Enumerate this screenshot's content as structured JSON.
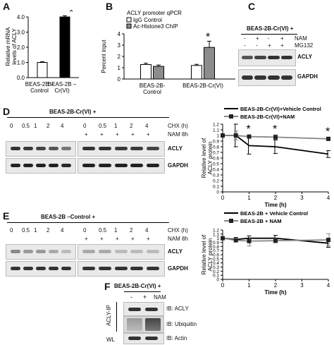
{
  "panels": {
    "A": "A",
    "B": "B",
    "C": "C",
    "D": "D",
    "E": "E",
    "F": "F"
  },
  "panelA": {
    "ylabel": "Relative mRNA\nlevels of ACLY",
    "chart_data": {
      "type": "bar",
      "categories": [
        "BEAS-2B –\nControl",
        "BEAS-2B –\nCr(VI)"
      ],
      "values": [
        1.0,
        4.0
      ],
      "error": [
        0.05,
        0.08
      ],
      "ylim": [
        0,
        4
      ],
      "yticks": [
        0,
        1,
        2,
        3,
        4
      ],
      "annotation": "*",
      "colors": [
        "#ffffff",
        "#000000"
      ]
    }
  },
  "panelB": {
    "title": "ACLY promoter qPCR",
    "ylabel": "Percent input",
    "chart_data": {
      "type": "bar",
      "categories": [
        "BEAS-2B-\nControl",
        "BEAS-2B-Cr(VI)"
      ],
      "series": [
        {
          "name": "IgG Control",
          "values": [
            1.28,
            1.2
          ],
          "error": [
            0.12,
            0.1
          ],
          "color": "#ffffff"
        },
        {
          "name": "Ac-Histone3 ChIP",
          "values": [
            1.12,
            2.8
          ],
          "error": [
            0.12,
            0.55
          ],
          "color": "#8c8c8c"
        }
      ],
      "ylim": [
        0,
        4
      ],
      "yticks": [
        0,
        1,
        2,
        3,
        4
      ],
      "annotation": "*"
    }
  },
  "panelC": {
    "header": "BEAS-2B-Cr(VI) +",
    "rows": [
      {
        "label": "NAM",
        "signs": [
          "-",
          "+",
          "-",
          "+"
        ]
      },
      {
        "label": "MG132",
        "signs": [
          "-",
          "-",
          "+",
          "+"
        ]
      }
    ],
    "blots": [
      "ACLY",
      "GAPDH"
    ]
  },
  "panelD": {
    "header": "BEAS-2B-Cr(VI) +",
    "chx_label": "CHX (h)",
    "nam_label": "NAM 8h",
    "times": [
      "0",
      "0.5",
      "1",
      "2",
      "4"
    ],
    "nam_signs": [
      "+",
      "+",
      "+",
      "+",
      "+"
    ],
    "blots": [
      "ACLY",
      "GAPDH"
    ],
    "ylabel": "Relative level of\nACLY protein",
    "xlabel": "Time (h)",
    "chart_data": {
      "type": "line",
      "x": [
        0,
        0.5,
        1,
        2,
        4
      ],
      "series": [
        {
          "name": "BEAS-2B-Cr(VI)+Vehicle Control",
          "values": [
            1.0,
            1.0,
            0.82,
            0.8,
            0.67
          ],
          "error": [
            0,
            0.2,
            0.15,
            0.12,
            0.06
          ],
          "color": "#000000",
          "marker": "none"
        },
        {
          "name": "BEAS-2B-Cr(VI)+NAM",
          "values": [
            1.0,
            1.0,
            0.98,
            0.97,
            0.94
          ],
          "error": [
            0,
            0.08,
            0.03,
            0.04,
            0.03
          ],
          "color": "#888888",
          "marker": "square"
        }
      ],
      "ylim": [
        0,
        1.2
      ],
      "yticks": [
        0,
        0.1,
        0.2,
        0.3,
        0.4,
        0.5,
        0.6,
        0.7,
        0.8,
        0.9,
        1,
        1.1,
        1.2
      ],
      "xlim": [
        0,
        4
      ],
      "xticks": [
        0,
        1,
        2,
        3,
        4
      ],
      "stars_at": [
        1,
        2,
        4
      ],
      "annotation": "*"
    }
  },
  "panelE": {
    "header": "BEAS-2B –Control +",
    "chx_label": "CHX (h)",
    "nam_label": "NAM 8h",
    "times": [
      "0",
      "0.5",
      "1",
      "2",
      "4"
    ],
    "nam_signs": [
      "+",
      "+",
      "+",
      "+",
      "+"
    ],
    "blots": [
      "ACLY",
      "GAPDH"
    ],
    "ylabel": "Relative level of\nACLY protein",
    "xlabel": "Time (h)",
    "chart_data": {
      "type": "line",
      "x": [
        0,
        0.5,
        1,
        2,
        4
      ],
      "series": [
        {
          "name": "BEAS-2B + Vehicle Control",
          "values": [
            1.0,
            0.97,
            1.0,
            1.0,
            0.88
          ],
          "error": [
            0,
            0.05,
            0.06,
            0.07,
            0.1
          ],
          "color": "#000000",
          "marker": "none"
        },
        {
          "name": "BEAS-2B + NAM",
          "values": [
            1.0,
            0.95,
            0.93,
            0.94,
            0.96
          ],
          "error": [
            0,
            0.04,
            0.12,
            0.05,
            0.15
          ],
          "color": "#888888",
          "marker": "square"
        }
      ],
      "ylim": [
        0,
        1.2
      ],
      "yticks": [
        0,
        0.1,
        0.2,
        0.3,
        0.4,
        0.5,
        0.6,
        0.7,
        0.8,
        0.9,
        1,
        1.1,
        1.2
      ],
      "xlim": [
        0,
        4
      ],
      "xticks": [
        0,
        1,
        2,
        3,
        4
      ]
    }
  },
  "panelF": {
    "header": "BEAS-2B-Cr(VI) +",
    "minus": "-",
    "plus": "+",
    "nam": "NAM",
    "ip": "ACLY-IP",
    "wl": "WL",
    "blots": [
      "IB: ACLY",
      "IB: Ubiquitin",
      "IB: Actin"
    ]
  }
}
